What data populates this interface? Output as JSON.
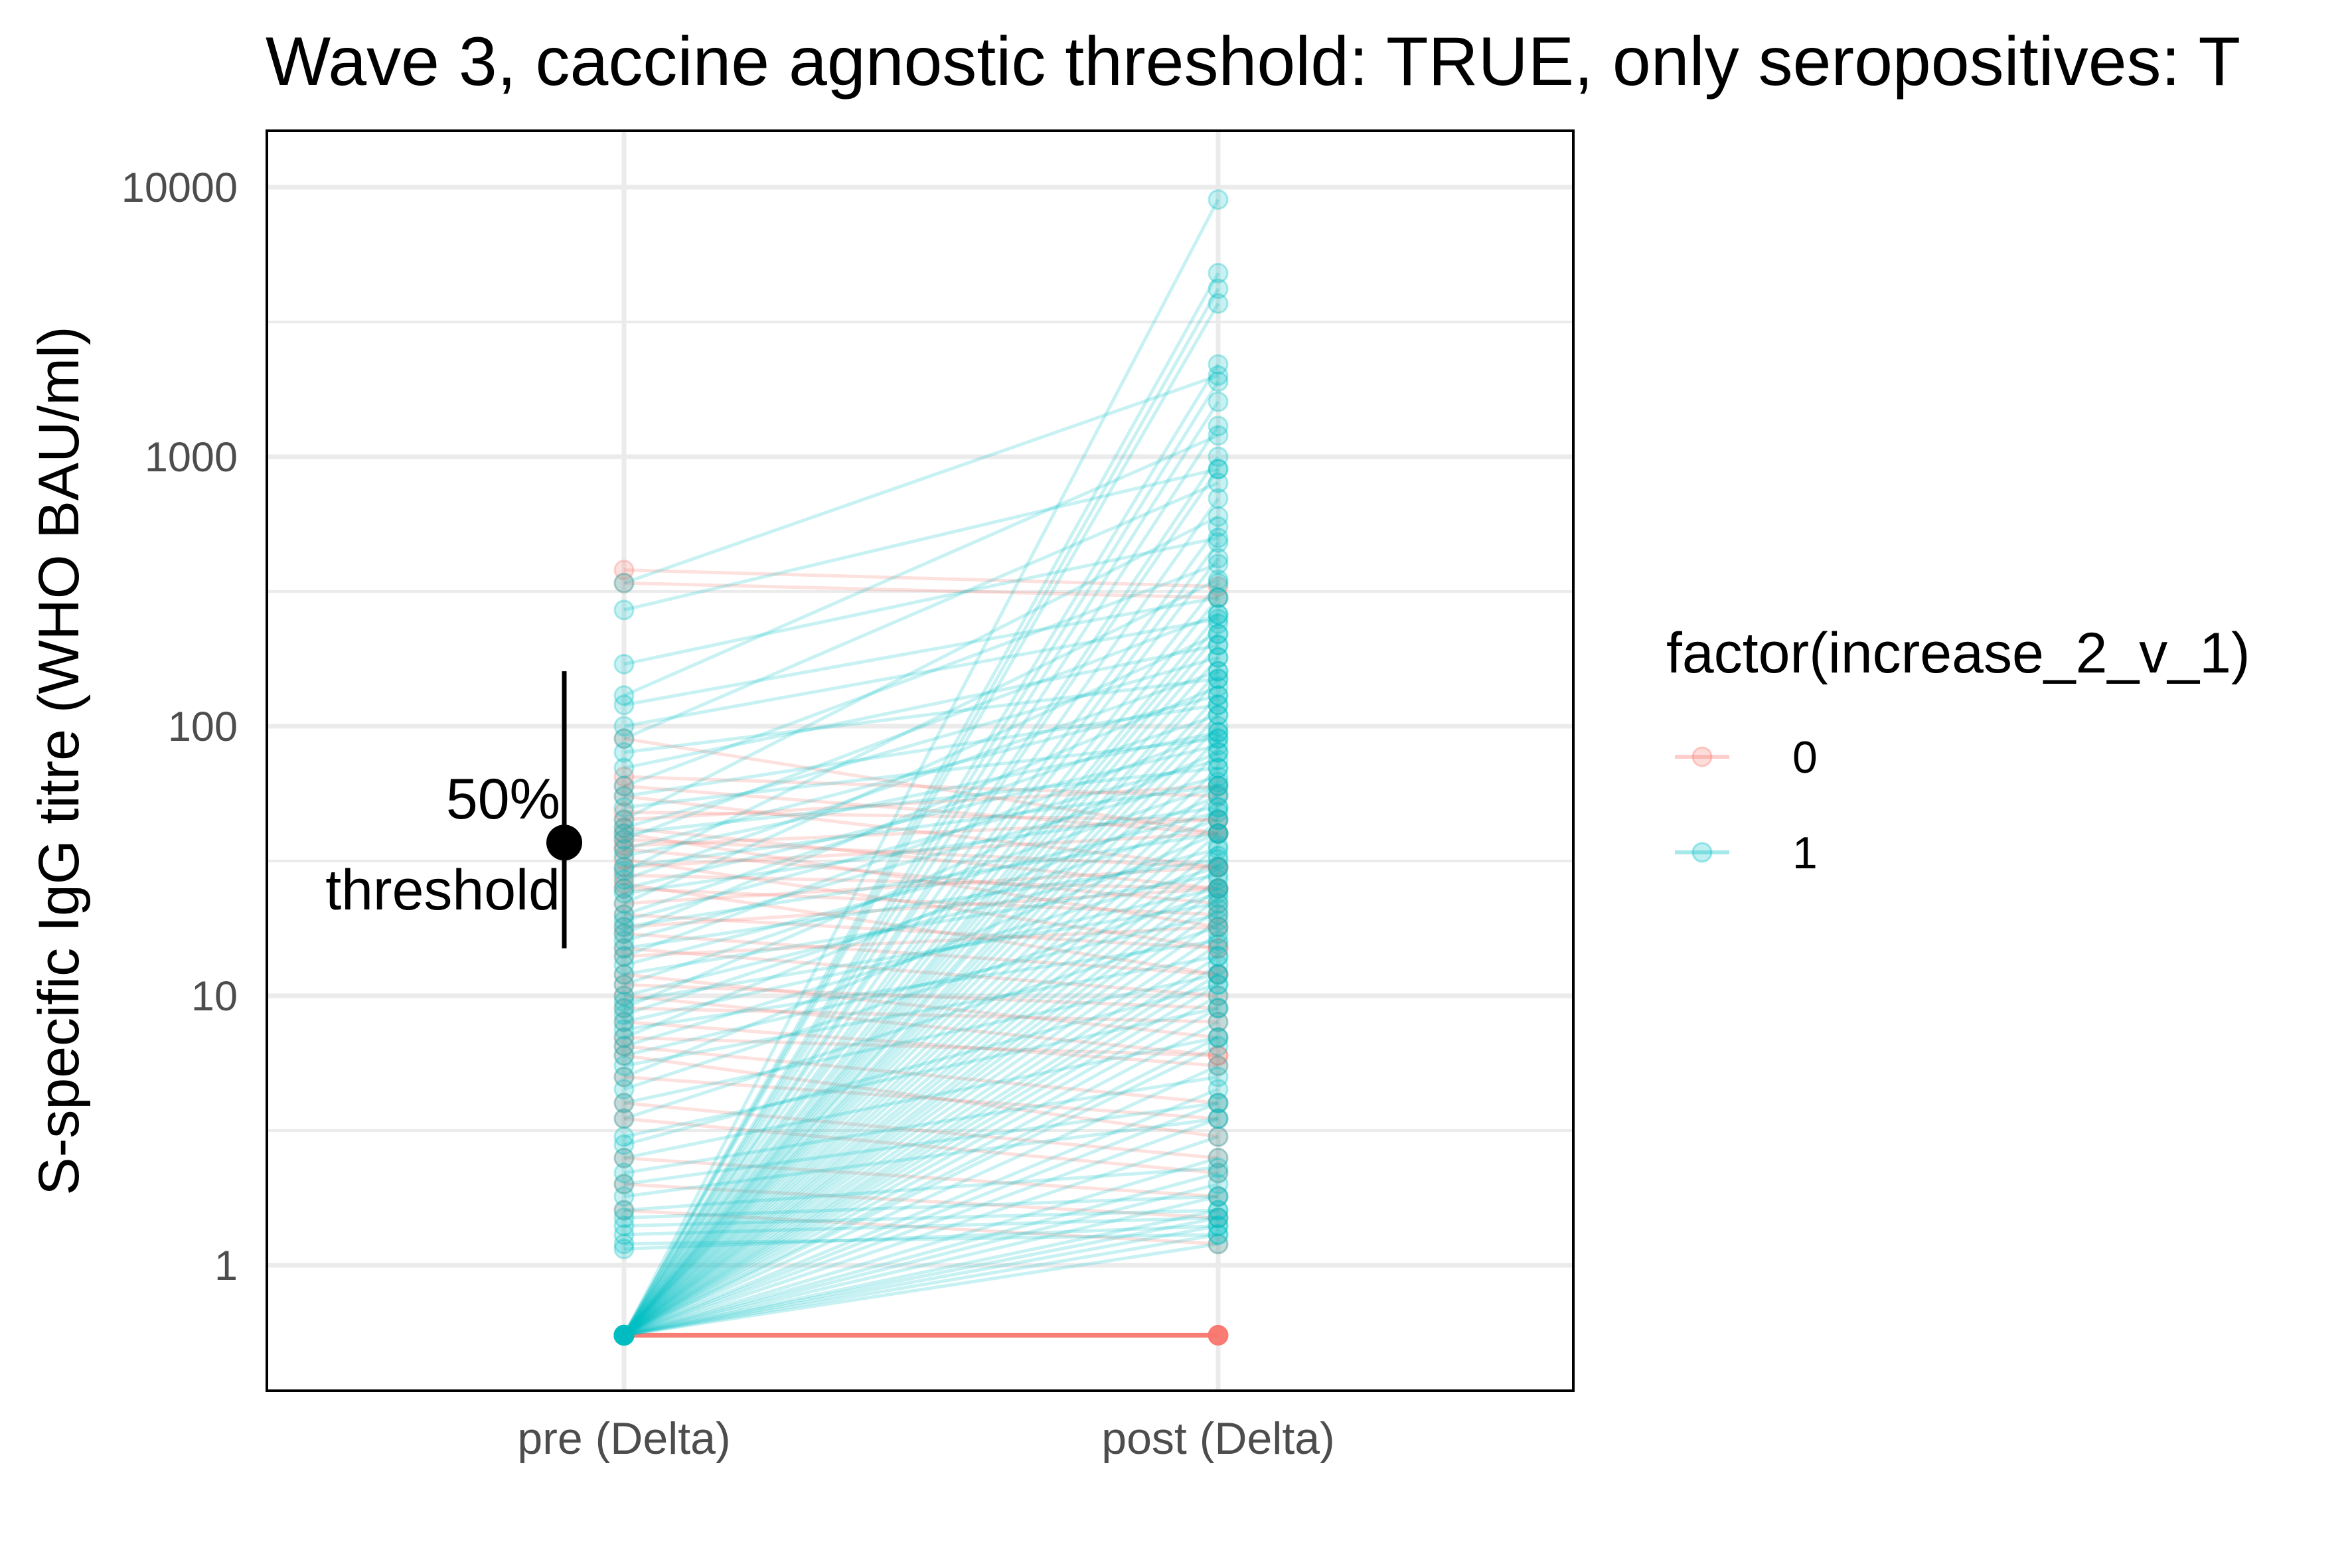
{
  "chart_data": {
    "type": "line",
    "title": "Wave 3, caccine agnostic threshold: TRUE, only seropositives: T",
    "xlabel": "",
    "ylabel": "S-specific IgG titre (WHO BAU/ml)",
    "categories": [
      "pre (Delta)",
      "post (Delta)"
    ],
    "y_scale": "log10",
    "ylim": [
      0.4,
      16000
    ],
    "y_ticks": [
      1,
      10,
      100,
      1000,
      10000
    ],
    "y_tick_labels": [
      "1",
      "10",
      "100",
      "1000",
      "10000"
    ],
    "grid": true,
    "legend": {
      "title": "factor(increase_2_v_1)",
      "position": "right",
      "entries": [
        {
          "label": "0",
          "color": "#F8766D"
        },
        {
          "label": "1",
          "color": "#00BFC4"
        }
      ]
    },
    "threshold": {
      "label_line1": "50%",
      "label_line2": "threshold",
      "value": 37,
      "lower": 15,
      "upper": 160
    },
    "series": [
      {
        "name": "0",
        "color": "#F8766D",
        "pairs": [
          [
            380,
            330
          ],
          [
            340,
            300
          ],
          [
            90,
            40
          ],
          [
            65,
            55
          ],
          [
            60,
            40
          ],
          [
            55,
            30
          ],
          [
            48,
            45
          ],
          [
            45,
            60
          ],
          [
            42,
            25
          ],
          [
            40,
            18
          ],
          [
            38,
            30
          ],
          [
            36,
            45
          ],
          [
            35,
            22
          ],
          [
            32,
            15
          ],
          [
            30,
            40
          ],
          [
            28,
            25
          ],
          [
            26,
            12
          ],
          [
            25,
            20
          ],
          [
            22,
            30
          ],
          [
            20,
            15
          ],
          [
            18,
            25
          ],
          [
            17,
            12
          ],
          [
            15,
            10
          ],
          [
            14,
            18
          ],
          [
            12,
            7
          ],
          [
            11,
            9
          ],
          [
            10,
            6
          ],
          [
            9,
            8
          ],
          [
            8,
            5.5
          ],
          [
            7,
            6
          ],
          [
            6.5,
            4
          ],
          [
            6,
            3
          ],
          [
            5,
            3.5
          ],
          [
            4,
            2.5
          ],
          [
            3.5,
            2.2
          ],
          [
            2.5,
            1.8
          ],
          [
            2,
            1.5
          ],
          [
            1.6,
            1.2
          ],
          [
            0.55,
            0.55
          ]
        ]
      },
      {
        "name": "1",
        "color": "#00BFC4",
        "pairs": [
          [
            340,
            2000
          ],
          [
            270,
            900
          ],
          [
            170,
            500
          ],
          [
            130,
            1200
          ],
          [
            120,
            300
          ],
          [
            100,
            250
          ],
          [
            90,
            800
          ],
          [
            80,
            150
          ],
          [
            70,
            200
          ],
          [
            60,
            400
          ],
          [
            55,
            120
          ],
          [
            50,
            90
          ],
          [
            45,
            600
          ],
          [
            42,
            180
          ],
          [
            40,
            70
          ],
          [
            38,
            260
          ],
          [
            35,
            130
          ],
          [
            33,
            95
          ],
          [
            30,
            60
          ],
          [
            29,
            350
          ],
          [
            27,
            160
          ],
          [
            25,
            85
          ],
          [
            24,
            50
          ],
          [
            22,
            220
          ],
          [
            20,
            110
          ],
          [
            19,
            75
          ],
          [
            18,
            40
          ],
          [
            17,
            140
          ],
          [
            16,
            65
          ],
          [
            15,
            32
          ],
          [
            14,
            95
          ],
          [
            13,
            48
          ],
          [
            12,
            28
          ],
          [
            11,
            60
          ],
          [
            10,
            35
          ],
          [
            9.5,
            22
          ],
          [
            9,
            80
          ],
          [
            8.5,
            45
          ],
          [
            8,
            25
          ],
          [
            7.5,
            16
          ],
          [
            7,
            55
          ],
          [
            6.5,
            30
          ],
          [
            6,
            20
          ],
          [
            5.5,
            14
          ],
          [
            5,
            40
          ],
          [
            4.5,
            24
          ],
          [
            4,
            12
          ],
          [
            3.5,
            18
          ],
          [
            3,
            9
          ],
          [
            2.8,
            11
          ],
          [
            2.5,
            7
          ],
          [
            2.2,
            5
          ],
          [
            2,
            4
          ],
          [
            1.8,
            3.5
          ],
          [
            1.6,
            2.3
          ],
          [
            1.5,
            1.8
          ],
          [
            1.4,
            1.6
          ],
          [
            1.3,
            1.5
          ],
          [
            1.2,
            1.3
          ],
          [
            1.15,
            1.4
          ],
          [
            0.55,
            9000
          ],
          [
            0.55,
            4800
          ],
          [
            0.55,
            4200
          ],
          [
            0.55,
            3700
          ],
          [
            0.55,
            2200
          ],
          [
            0.55,
            1900
          ],
          [
            0.55,
            1600
          ],
          [
            0.55,
            1300
          ],
          [
            0.55,
            1000
          ],
          [
            0.55,
            900
          ],
          [
            0.55,
            700
          ],
          [
            0.55,
            550
          ],
          [
            0.55,
            480
          ],
          [
            0.55,
            420
          ],
          [
            0.55,
            340
          ],
          [
            0.55,
            300
          ],
          [
            0.55,
            260
          ],
          [
            0.55,
            240
          ],
          [
            0.55,
            220
          ],
          [
            0.55,
            200
          ],
          [
            0.55,
            180
          ],
          [
            0.55,
            160
          ],
          [
            0.55,
            150
          ],
          [
            0.55,
            130
          ],
          [
            0.55,
            120
          ],
          [
            0.55,
            110
          ],
          [
            0.55,
            100
          ],
          [
            0.55,
            90
          ],
          [
            0.55,
            80
          ],
          [
            0.55,
            70
          ],
          [
            0.55,
            62
          ],
          [
            0.55,
            56
          ],
          [
            0.55,
            50
          ],
          [
            0.55,
            45
          ],
          [
            0.55,
            40
          ],
          [
            0.55,
            36
          ],
          [
            0.55,
            33
          ],
          [
            0.55,
            30
          ],
          [
            0.55,
            27
          ],
          [
            0.55,
            25
          ],
          [
            0.55,
            23
          ],
          [
            0.55,
            21
          ],
          [
            0.55,
            19
          ],
          [
            0.55,
            17
          ],
          [
            0.55,
            15.5
          ],
          [
            0.55,
            14
          ],
          [
            0.55,
            13
          ],
          [
            0.55,
            12
          ],
          [
            0.55,
            11
          ],
          [
            0.55,
            10
          ],
          [
            0.55,
            9
          ],
          [
            0.55,
            8
          ],
          [
            0.55,
            7
          ],
          [
            0.55,
            6.5
          ],
          [
            0.55,
            5.5
          ],
          [
            0.55,
            4.5
          ],
          [
            0.55,
            4
          ],
          [
            0.55,
            3.5
          ],
          [
            0.55,
            3
          ],
          [
            0.55,
            2.5
          ],
          [
            0.55,
            2.2
          ],
          [
            0.55,
            2
          ],
          [
            0.55,
            1.8
          ],
          [
            0.55,
            1.6
          ],
          [
            0.55,
            1.5
          ],
          [
            0.55,
            1.4
          ],
          [
            0.55,
            1.3
          ],
          [
            0.55,
            1.2
          ]
        ]
      }
    ]
  }
}
